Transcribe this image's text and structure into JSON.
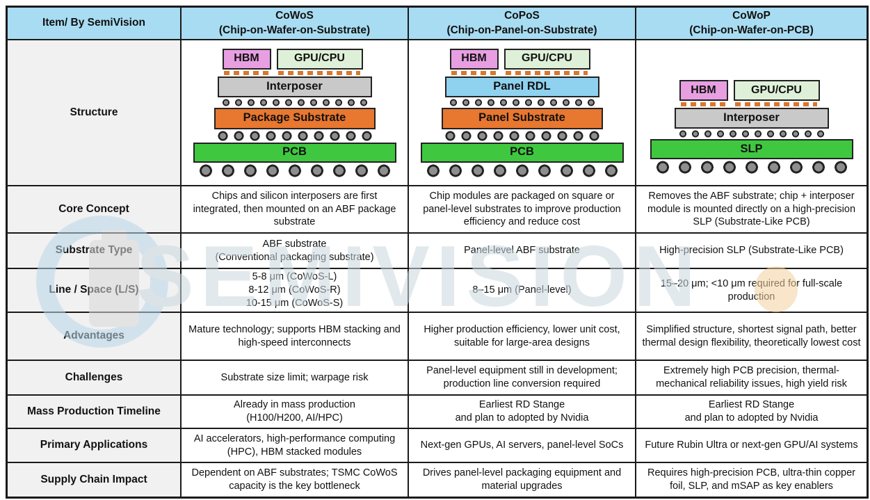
{
  "header": {
    "item_label": "Item/ By SemiVision",
    "cowos_title": "CoWoS",
    "cowos_subtitle": "(Chip-on-Wafer-on-Substrate)",
    "copos_title": "CoPoS",
    "copos_subtitle": "(Chip-on-Panel-on-Substrate)",
    "cowop_title": "CoWoP",
    "cowop_subtitle": "(Chip-on-Wafer-on-PCB)"
  },
  "row_labels": {
    "structure": "Structure",
    "core_concept": "Core Concept",
    "substrate_type": "Substrate Type",
    "line_space": "Line / Space (L/S)",
    "advantages": "Advantages",
    "challenges": "Challenges",
    "mass_production": "Mass Production Timeline",
    "primary_applications": "Primary Applications",
    "supply_chain": "Supply Chain Impact"
  },
  "cells": {
    "core_concept": {
      "cowos": "Chips and silicon interposers are first integrated, then mounted on an ABF package substrate",
      "copos": "Chip modules are packaged on square or panel-level substrates to improve production efficiency and reduce cost",
      "cowop": "Removes the ABF substrate; chip + interposer module is mounted directly on a high-precision SLP (Substrate-Like PCB)"
    },
    "substrate_type": {
      "cowos": "ABF substrate\n(Conventional packaging substrate)",
      "copos": "Panel-level ABF substrate",
      "cowop": "High-precision SLP (Substrate-Like PCB)"
    },
    "line_space": {
      "cowos": "5-8 μm (CoWoS-L)\n8-12 μm (CoWoS-R)\n10-15 μm (CoWoS-S)",
      "copos": "8–15 μm (Panel-level)",
      "cowop": "15–20 μm; <10 μm required for full-scale production"
    },
    "advantages": {
      "cowos": "Mature technology; supports HBM stacking and high-speed interconnects",
      "copos": "Higher production efficiency, lower unit cost, suitable for large-area designs",
      "cowop": "Simplified structure, shortest signal path, better thermal design flexibility, theoretically lowest cost"
    },
    "challenges": {
      "cowos": "Substrate size limit; warpage risk",
      "copos": "Panel-level equipment still in development; production line conversion required",
      "cowop": "Extremely high PCB precision, thermal-mechanical reliability issues, high yield risk"
    },
    "mass_production": {
      "cowos": "Already in mass production\n(H100/H200, AI/HPC)",
      "copos": "Earliest RD Stange\nand plan to adopted by Nvidia",
      "cowop": "Earliest RD Stange\nand plan to adopted by Nvidia"
    },
    "primary_applications": {
      "cowos": "AI accelerators, high-performance computing (HPC), HBM stacked modules",
      "copos": "Next-gen GPUs, AI servers, panel-level SoCs",
      "cowop": "Future Rubin Ultra or next-gen GPU/AI systems"
    },
    "supply_chain": {
      "cowos": "Dependent on ABF substrates; TSMC CoWoS capacity is the key bottleneck",
      "copos": "Drives panel-level packaging equipment and material upgrades",
      "cowop": "Requires high-precision PCB, ultra-thin copper foil, SLP, and mSAP as key enablers"
    }
  },
  "diagrams": {
    "cowos": {
      "hbm": "HBM",
      "gpu": "GPU/CPU",
      "mid": "Interposer",
      "substrate": "Package Substrate",
      "base": "PCB"
    },
    "copos": {
      "hbm": "HBM",
      "gpu": "GPU/CPU",
      "mid": "Panel RDL",
      "substrate": "Panel Substrate",
      "base": "PCB"
    },
    "cowop": {
      "hbm": "HBM",
      "gpu": "GPU/CPU",
      "mid": "Interposer",
      "base": "SLP"
    }
  },
  "watermark": {
    "text": "SEMIVISION"
  },
  "colors": {
    "header_bg": "#A8DCF2",
    "label_bg": "#F1F1F1",
    "border": "#1A1A1A",
    "hbm_pink": "#E79FE2",
    "gpu_green": "#DFF0D8",
    "interposer_gray": "#C9C9C9",
    "panel_rdl_blue": "#8FD2F0",
    "substrate_orange": "#E8772F",
    "pcb_green": "#3FC83F",
    "ball_gray": "#8E8E8E",
    "microbump_orange": "#D9772E",
    "watermark_blue": "#CCD8E0"
  }
}
